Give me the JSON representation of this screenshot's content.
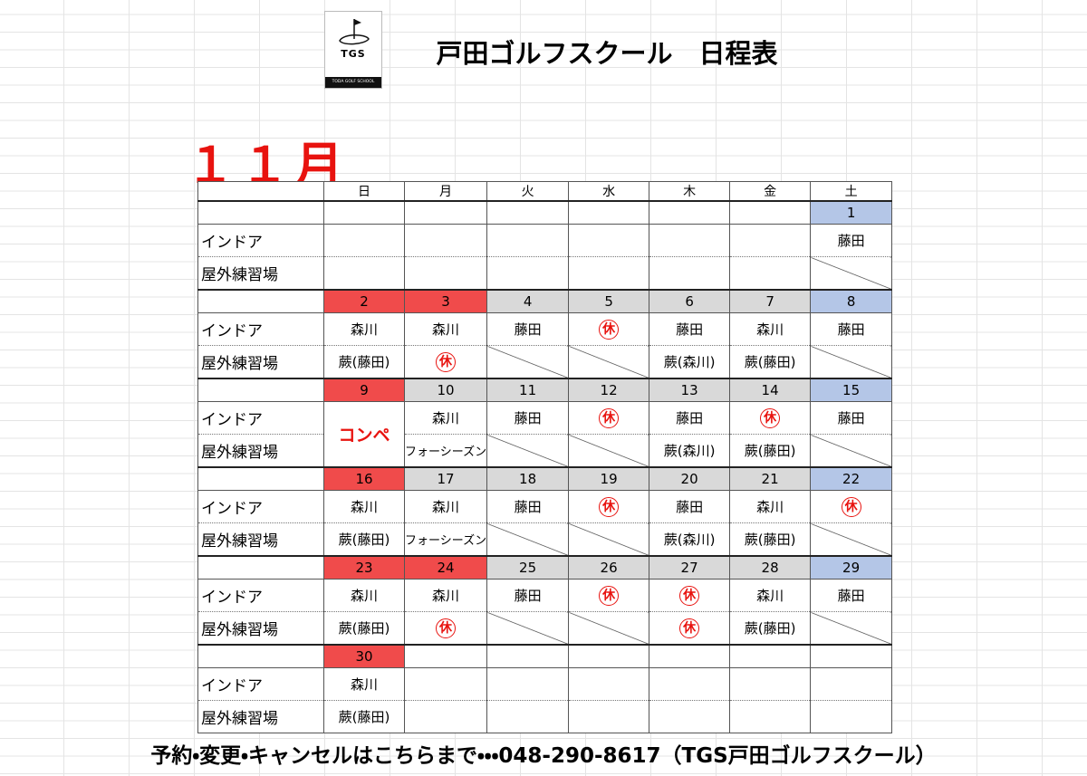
{
  "logo": {
    "mark": "TGS",
    "caption": "TODA GOLF SCHOOL"
  },
  "title": "戸田ゴルフスクール　日程表",
  "month": "１１月",
  "weekdays": [
    "日",
    "月",
    "火",
    "水",
    "木",
    "金",
    "土"
  ],
  "row_labels": [
    "インドア",
    "屋外練習場"
  ],
  "weeks": [
    {
      "dates": [
        null,
        null,
        null,
        null,
        null,
        null,
        1
      ],
      "indoor": [
        null,
        null,
        null,
        null,
        null,
        null,
        "藤田"
      ],
      "outdoor": [
        null,
        null,
        null,
        null,
        null,
        null,
        null
      ]
    },
    {
      "dates": [
        2,
        3,
        4,
        5,
        6,
        7,
        8
      ],
      "indoor": [
        "森川",
        "森川",
        "藤田",
        "休",
        "藤田",
        "森川",
        "藤田"
      ],
      "outdoor": [
        "蕨(藤田)",
        "休",
        null,
        null,
        "蕨(森川)",
        "蕨(藤田)",
        null
      ]
    },
    {
      "dates": [
        9,
        10,
        11,
        12,
        13,
        14,
        15
      ],
      "indoor": [
        "コンペ",
        "森川",
        "藤田",
        "休",
        "藤田",
        "休",
        "藤田"
      ],
      "outdoor": [
        null,
        "フォーシーズン",
        null,
        null,
        "蕨(森川)",
        "蕨(藤田)",
        null
      ]
    },
    {
      "dates": [
        16,
        17,
        18,
        19,
        20,
        21,
        22
      ],
      "indoor": [
        "森川",
        "森川",
        "藤田",
        "休",
        "藤田",
        "森川",
        "休"
      ],
      "outdoor": [
        "蕨(藤田)",
        "フォーシーズン",
        null,
        null,
        "蕨(森川)",
        "蕨(藤田)",
        null
      ]
    },
    {
      "dates": [
        23,
        24,
        25,
        26,
        27,
        28,
        29
      ],
      "indoor": [
        "森川",
        "森川",
        "藤田",
        "休",
        "休",
        "森川",
        "藤田"
      ],
      "outdoor": [
        "蕨(藤田)",
        "休",
        null,
        null,
        "休",
        "蕨(藤田)",
        null
      ]
    },
    {
      "dates": [
        30,
        null,
        null,
        null,
        null,
        null,
        null
      ],
      "indoor": [
        "森川",
        null,
        null,
        null,
        null,
        null,
        null
      ],
      "outdoor": [
        "蕨(藤田)",
        null,
        null,
        null,
        null,
        null,
        null
      ]
    }
  ],
  "footer": "予約・変更・キャンセルはこちらまで・・・048-290-8617（TGS戸田ゴルフスクール）"
}
